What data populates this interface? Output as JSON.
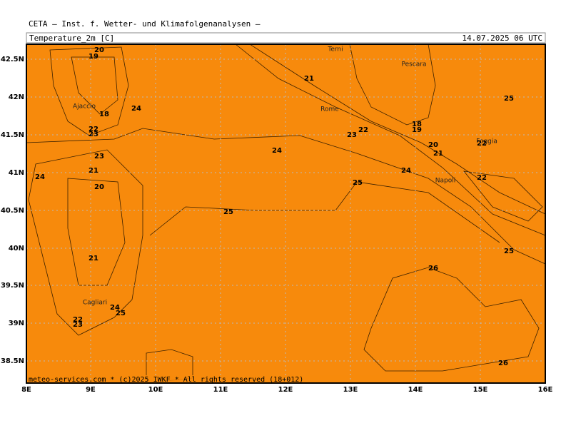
{
  "header": {
    "title": "CETA — Inst. f. Wetter- und Klimafolgenanalysen —",
    "field": "Temperature_2m [C]",
    "valid": "14.07.2025 06 UTC"
  },
  "map": {
    "lat_labels": [
      "42.5N",
      "42N",
      "41.5N",
      "41N",
      "40.5N",
      "40N",
      "39.5N",
      "39N",
      "38.5N"
    ],
    "lon_labels": [
      "8E",
      "9E",
      "10E",
      "11E",
      "12E",
      "13E",
      "14E",
      "15E",
      "16E"
    ],
    "cities": [
      "Terni",
      "Pescara",
      "Ajaccio",
      "Rome",
      "Foggia",
      "Napoli",
      "Cagliari"
    ],
    "contour_labels": [
      "20",
      "19",
      "18",
      "22",
      "23",
      "24",
      "23",
      "21",
      "24",
      "20",
      "21",
      "24",
      "25",
      "22",
      "23",
      "21",
      "24",
      "23",
      "22",
      "18",
      "19",
      "20",
      "21",
      "22",
      "25",
      "24",
      "22",
      "25",
      "25",
      "25",
      "26",
      "26"
    ]
  },
  "footer": "meteo-services.com * (c)2025 IWKF * All rights reserved (18+012)"
}
